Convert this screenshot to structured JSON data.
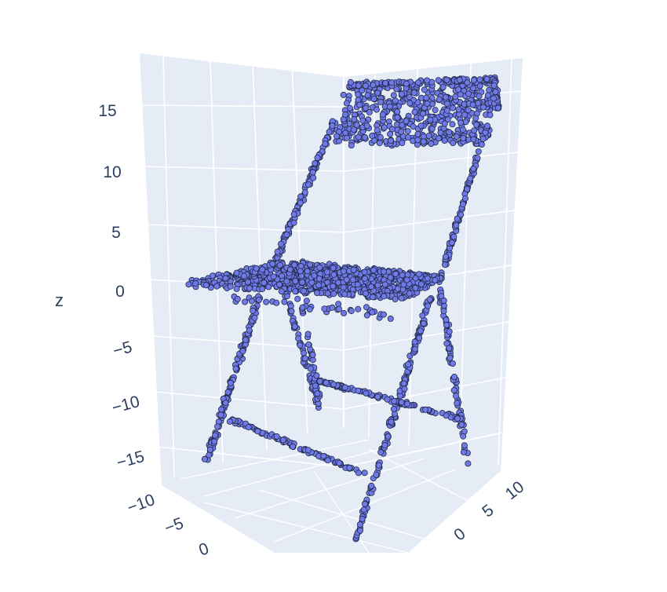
{
  "chart_data": {
    "type": "scatter3d",
    "title": "",
    "description_shape": "folding chair point cloud",
    "axes": {
      "z": {
        "label": "z",
        "ticks": [
          "15",
          "10",
          "5",
          "0",
          "−5",
          "−10",
          "−15"
        ],
        "tick_values": [
          15,
          10,
          5,
          0,
          -5,
          -10,
          -15
        ],
        "range": [
          -18,
          18
        ]
      },
      "x": {
        "label": "",
        "ticks": [
          "−10",
          "−5",
          "0"
        ],
        "tick_values": [
          -10,
          -5,
          0
        ]
      },
      "y": {
        "label": "",
        "ticks": [
          "10",
          "5",
          "0"
        ],
        "tick_values": [
          10,
          5,
          0
        ]
      }
    },
    "marker": {
      "color": "#6f79e8",
      "line_color": "#1f2a44",
      "size": 3.6
    },
    "colors": {
      "background": "#e5ecf6",
      "grid": "#ffffff",
      "text": "#2a3f5f"
    },
    "parts": [
      {
        "name": "backrest",
        "n": 520,
        "x": [
          -6,
          6
        ],
        "y": [
          -1.5,
          1.5
        ],
        "z": [
          12,
          17
        ]
      },
      {
        "name": "seat",
        "n": 900,
        "x": [
          -9,
          7
        ],
        "y": [
          -6,
          4
        ],
        "z": [
          -2,
          1
        ]
      },
      {
        "name": "rear-legs",
        "n": 360,
        "z": [
          -17,
          14
        ]
      },
      {
        "name": "front-legs",
        "n": 380,
        "z": [
          -19,
          0
        ]
      },
      {
        "name": "crossbars",
        "n": 200,
        "z": [
          -12,
          -10
        ]
      }
    ]
  }
}
